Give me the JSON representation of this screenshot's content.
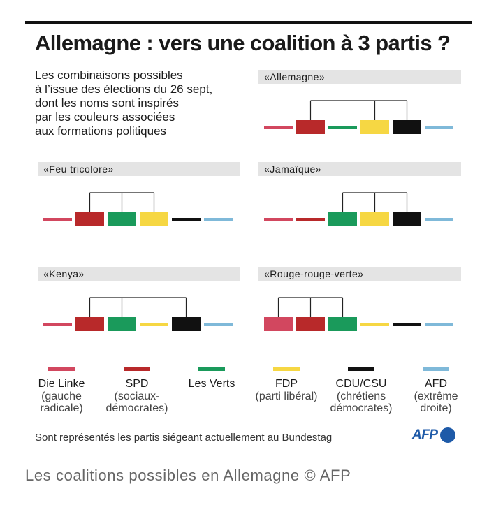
{
  "title": "Allemagne : vers une coalition à 3 partis ?",
  "intro": [
    "Les combinaisons possibles",
    "à l’issue des élections du 26 sept,",
    "dont les noms sont inspirés",
    "par les couleurs associées",
    "aux formations politiques"
  ],
  "parties": [
    {
      "key": "linke",
      "name": "Die Linke",
      "sub": [
        "(gauche",
        "radicale)"
      ],
      "color": "#d2475f"
    },
    {
      "key": "spd",
      "name": "SPD",
      "sub": [
        "(sociaux-",
        "démocrates)"
      ],
      "color": "#b8292a"
    },
    {
      "key": "verts",
      "name": "Les Verts",
      "sub": [],
      "color": "#1a9a5b"
    },
    {
      "key": "fdp",
      "name": "FDP",
      "sub": [
        "(parti libéral)"
      ],
      "color": "#f6d743"
    },
    {
      "key": "cdu",
      "name": "CDU/CSU",
      "sub": [
        "(chrétiens",
        "démocrates)"
      ],
      "color": "#111111"
    },
    {
      "key": "afd",
      "name": "AFD",
      "sub": [
        "(extrême",
        "droite)"
      ],
      "color": "#7fb9d9"
    }
  ],
  "coalitions": [
    {
      "label": "«Allemagne»",
      "members": [
        "spd",
        "fdp",
        "cdu"
      ]
    },
    {
      "label": "«Feu tricolore»",
      "members": [
        "spd",
        "verts",
        "fdp"
      ]
    },
    {
      "label": "«Jamaïque»",
      "members": [
        "verts",
        "fdp",
        "cdu"
      ]
    },
    {
      "label": "«Kenya»",
      "members": [
        "spd",
        "verts",
        "cdu"
      ]
    },
    {
      "label": "«Rouge-rouge-verte»",
      "members": [
        "linke",
        "spd",
        "verts"
      ]
    }
  ],
  "footnote": "Sont représentés les partis siégeant actuellement au Bundestag",
  "logo": "AFP",
  "caption": "Les coalitions possibles en Allemagne © AFP"
}
